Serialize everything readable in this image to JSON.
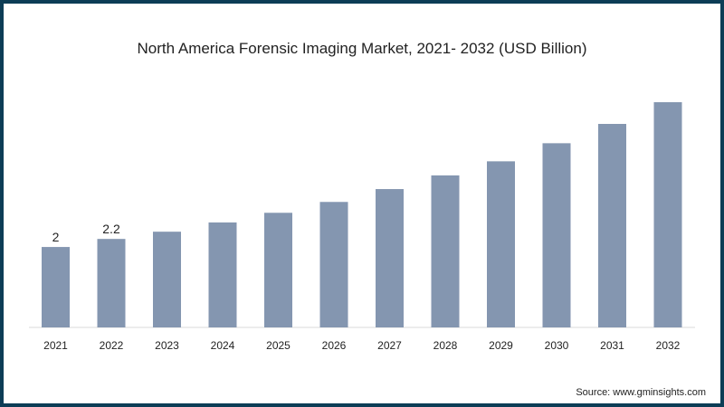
{
  "chart_data": {
    "type": "bar",
    "title": "North America Forensic Imaging Market, 2021- 2032 (USD Billion)",
    "xlabel": "",
    "ylabel": "",
    "categories": [
      "2021",
      "2022",
      "2023",
      "2024",
      "2025",
      "2026",
      "2027",
      "2028",
      "2029",
      "2030",
      "2031",
      "2032"
    ],
    "values": [
      2.0,
      2.2,
      2.38,
      2.61,
      2.85,
      3.12,
      3.44,
      3.78,
      4.13,
      4.58,
      5.06,
      5.6
    ],
    "data_labels": [
      "2",
      "2.2",
      "",
      "",
      "",
      "",
      "",
      "",
      "",
      "",
      "",
      ""
    ],
    "ylim": [
      0,
      5.6
    ],
    "grid": false,
    "bar_color": "#8496b0",
    "source": "Source: www.gminsights.com"
  }
}
